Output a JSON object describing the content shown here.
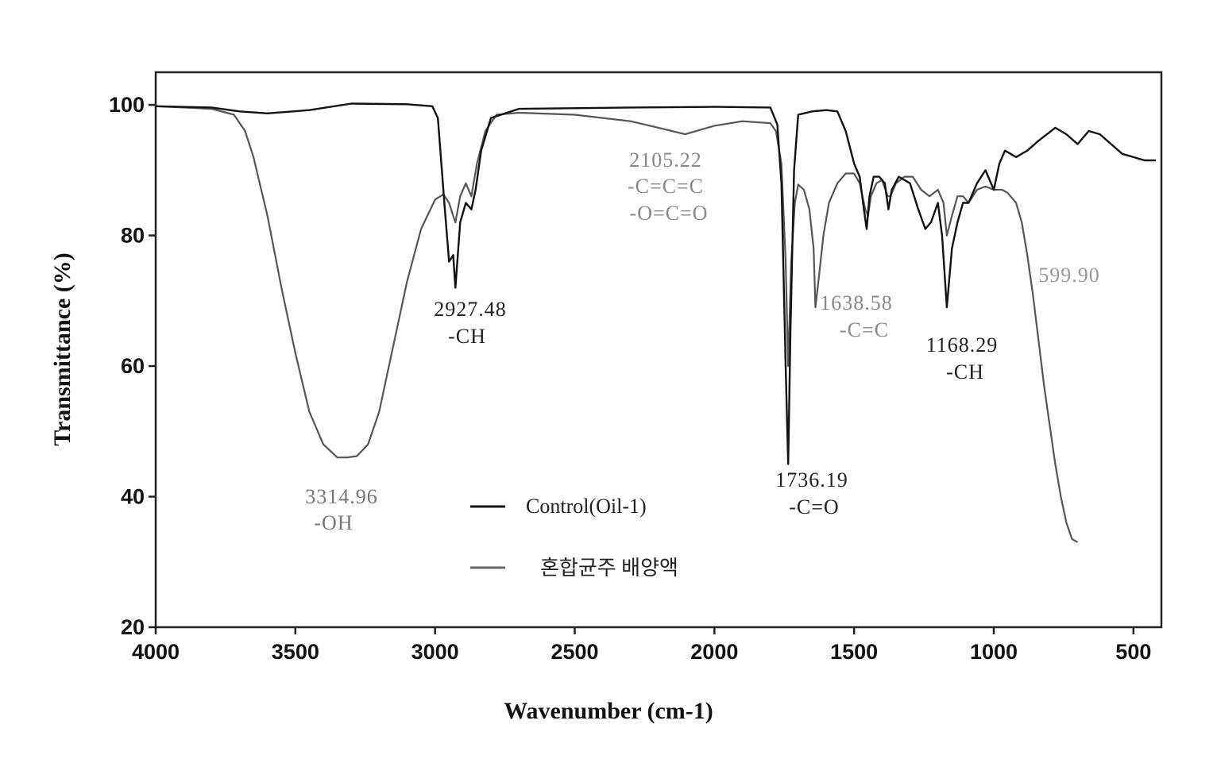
{
  "chart_data": {
    "type": "line",
    "xlabel": "Wavenumber (cm-1)",
    "ylabel": "Transmittance (%)",
    "xlim": [
      4000,
      400
    ],
    "ylim": [
      20,
      105
    ],
    "x_ticks": [
      4000,
      3500,
      3000,
      2500,
      2000,
      1500,
      1000,
      500
    ],
    "y_ticks": [
      20,
      40,
      60,
      80,
      100
    ],
    "grid": false,
    "legend_position": "bottom-center",
    "series": [
      {
        "name": "Control(Oil-1)",
        "color": "#111111",
        "points": [
          [
            4000,
            99.8
          ],
          [
            3800,
            99.6
          ],
          [
            3700,
            99.0
          ],
          [
            3600,
            98.7
          ],
          [
            3450,
            99.2
          ],
          [
            3300,
            100.2
          ],
          [
            3100,
            100.1
          ],
          [
            3010,
            99.8
          ],
          [
            2990,
            98
          ],
          [
            2965,
            84
          ],
          [
            2950,
            76
          ],
          [
            2935,
            77
          ],
          [
            2927,
            72
          ],
          [
            2910,
            82
          ],
          [
            2890,
            85
          ],
          [
            2870,
            84
          ],
          [
            2855,
            87
          ],
          [
            2835,
            93
          ],
          [
            2800,
            98
          ],
          [
            2700,
            99.4
          ],
          [
            2300,
            99.6
          ],
          [
            2000,
            99.7
          ],
          [
            1800,
            99.6
          ],
          [
            1775,
            97
          ],
          [
            1760,
            88
          ],
          [
            1745,
            60
          ],
          [
            1736,
            45
          ],
          [
            1728,
            65
          ],
          [
            1715,
            90
          ],
          [
            1700,
            98.5
          ],
          [
            1650,
            99.0
          ],
          [
            1600,
            99.2
          ],
          [
            1560,
            99.0
          ],
          [
            1530,
            96
          ],
          [
            1500,
            91
          ],
          [
            1480,
            89
          ],
          [
            1465,
            84
          ],
          [
            1455,
            81
          ],
          [
            1445,
            86
          ],
          [
            1430,
            89
          ],
          [
            1410,
            89
          ],
          [
            1390,
            88
          ],
          [
            1377,
            84
          ],
          [
            1365,
            87
          ],
          [
            1340,
            89
          ],
          [
            1300,
            88
          ],
          [
            1270,
            84
          ],
          [
            1245,
            81
          ],
          [
            1225,
            82
          ],
          [
            1200,
            85
          ],
          [
            1185,
            80
          ],
          [
            1168,
            69
          ],
          [
            1150,
            78
          ],
          [
            1130,
            82
          ],
          [
            1110,
            85
          ],
          [
            1090,
            85
          ],
          [
            1060,
            88
          ],
          [
            1030,
            90
          ],
          [
            1000,
            87
          ],
          [
            980,
            91
          ],
          [
            960,
            93
          ],
          [
            920,
            92
          ],
          [
            880,
            93
          ],
          [
            840,
            94.5
          ],
          [
            780,
            96.5
          ],
          [
            740,
            95.5
          ],
          [
            700,
            94
          ],
          [
            660,
            96
          ],
          [
            620,
            95.5
          ],
          [
            580,
            94
          ],
          [
            540,
            92.5
          ],
          [
            500,
            92
          ],
          [
            460,
            91.5
          ],
          [
            420,
            91.5
          ]
        ]
      },
      {
        "name": "혼합균주 배양액",
        "color": "#555555",
        "points": [
          [
            4000,
            99.8
          ],
          [
            3800,
            99.4
          ],
          [
            3720,
            98.5
          ],
          [
            3680,
            96
          ],
          [
            3650,
            92
          ],
          [
            3600,
            83
          ],
          [
            3550,
            72
          ],
          [
            3500,
            62
          ],
          [
            3450,
            53
          ],
          [
            3400,
            48
          ],
          [
            3350,
            46
          ],
          [
            3314,
            46
          ],
          [
            3280,
            46.2
          ],
          [
            3240,
            48
          ],
          [
            3200,
            53
          ],
          [
            3150,
            63
          ],
          [
            3100,
            73
          ],
          [
            3050,
            81
          ],
          [
            3000,
            85.5
          ],
          [
            2970,
            86.3
          ],
          [
            2950,
            85
          ],
          [
            2935,
            83
          ],
          [
            2927,
            82
          ],
          [
            2910,
            86
          ],
          [
            2890,
            88
          ],
          [
            2870,
            86
          ],
          [
            2850,
            91
          ],
          [
            2820,
            96
          ],
          [
            2780,
            98.5
          ],
          [
            2700,
            98.8
          ],
          [
            2500,
            98.5
          ],
          [
            2300,
            97.5
          ],
          [
            2200,
            96.5
          ],
          [
            2105,
            95.5
          ],
          [
            2000,
            96.8
          ],
          [
            1900,
            97.5
          ],
          [
            1800,
            97.2
          ],
          [
            1780,
            96
          ],
          [
            1760,
            91
          ],
          [
            1745,
            76
          ],
          [
            1736,
            60
          ],
          [
            1725,
            76
          ],
          [
            1712,
            85
          ],
          [
            1700,
            87.8
          ],
          [
            1680,
            87
          ],
          [
            1660,
            84
          ],
          [
            1645,
            78
          ],
          [
            1638.5,
            69
          ],
          [
            1625,
            74
          ],
          [
            1610,
            80
          ],
          [
            1590,
            85
          ],
          [
            1560,
            88
          ],
          [
            1530,
            89.5
          ],
          [
            1500,
            89.5
          ],
          [
            1480,
            88
          ],
          [
            1460,
            84
          ],
          [
            1450,
            83
          ],
          [
            1440,
            86
          ],
          [
            1420,
            88
          ],
          [
            1400,
            88.5
          ],
          [
            1380,
            86
          ],
          [
            1370,
            86
          ],
          [
            1350,
            88
          ],
          [
            1320,
            89
          ],
          [
            1290,
            89
          ],
          [
            1260,
            87
          ],
          [
            1230,
            86
          ],
          [
            1200,
            87
          ],
          [
            1180,
            85
          ],
          [
            1168,
            80
          ],
          [
            1150,
            83
          ],
          [
            1130,
            86
          ],
          [
            1110,
            86
          ],
          [
            1090,
            85
          ],
          [
            1060,
            87
          ],
          [
            1030,
            87.5
          ],
          [
            1000,
            87
          ],
          [
            970,
            87
          ],
          [
            950,
            86.5
          ],
          [
            920,
            85
          ],
          [
            900,
            82
          ],
          [
            880,
            77
          ],
          [
            860,
            71
          ],
          [
            840,
            64
          ],
          [
            820,
            57
          ],
          [
            800,
            51
          ],
          [
            780,
            45
          ],
          [
            760,
            40
          ],
          [
            740,
            36
          ],
          [
            720,
            33.5
          ],
          [
            700,
            33
          ]
        ]
      }
    ],
    "annotations": [
      {
        "wavenumber": "3314.96",
        "group": "-OH"
      },
      {
        "wavenumber": "2927.48",
        "group": "-CH"
      },
      {
        "wavenumber": "2105.22",
        "group": "-C=C=C",
        "group2": "-O=C=O"
      },
      {
        "wavenumber": "1736.19",
        "group": "-C=O"
      },
      {
        "wavenumber": "1638.58",
        "group": "-C=C"
      },
      {
        "wavenumber": "1168.29",
        "group": "-CH"
      },
      {
        "wavenumber": "599.90",
        "group": ""
      }
    ]
  }
}
